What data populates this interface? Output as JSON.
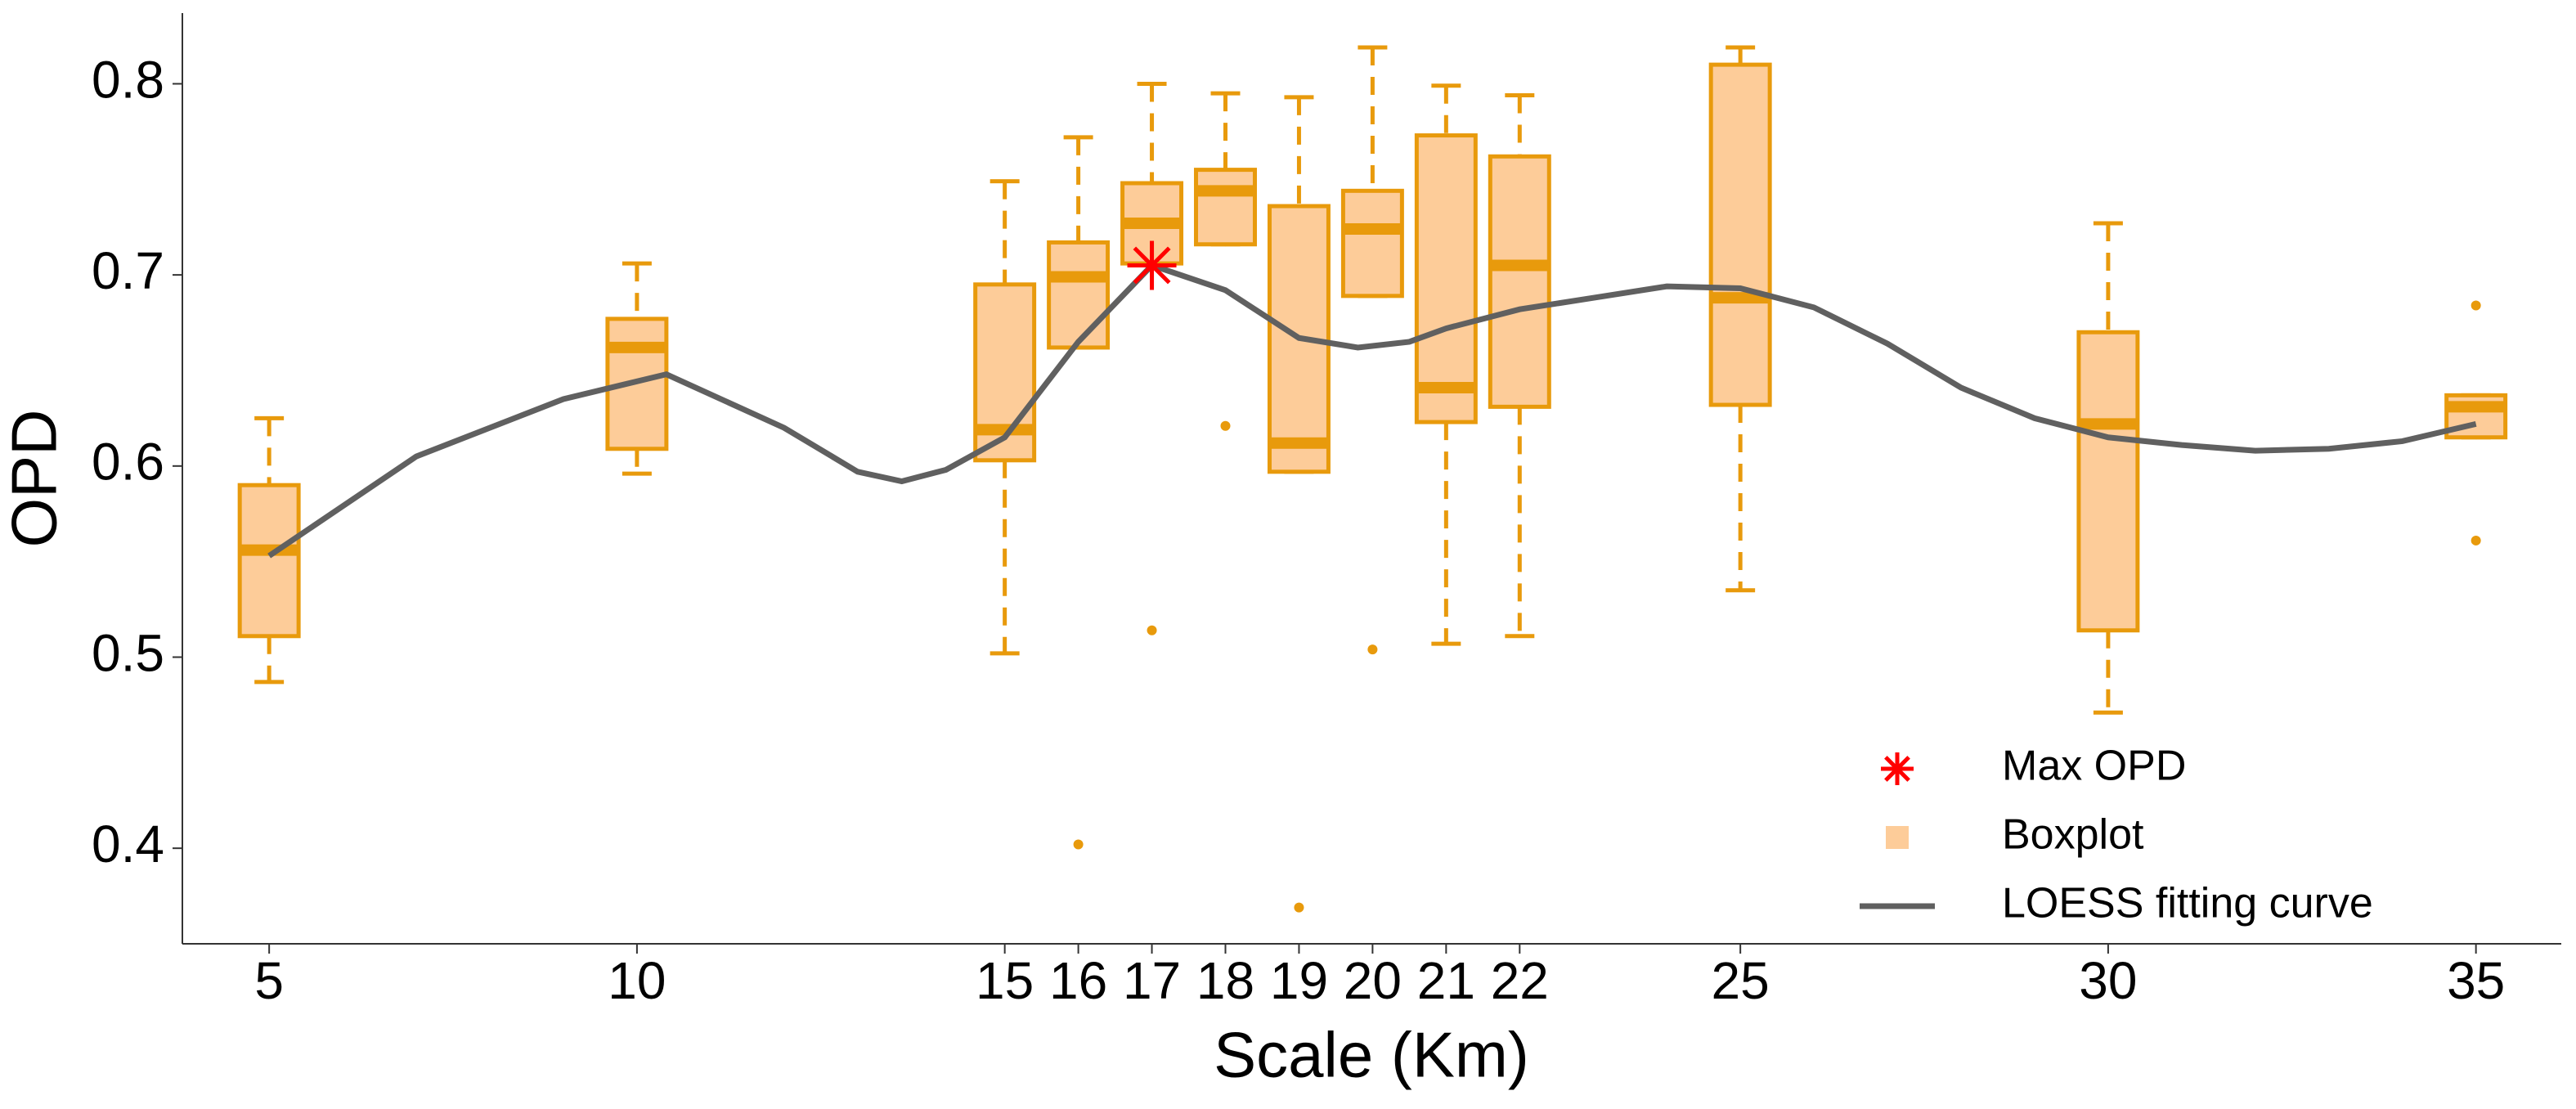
{
  "chart_data": {
    "type": "box",
    "x_label": "Scale (Km)",
    "y_label": "OPD",
    "xlim": [
      3.82,
      36.16
    ],
    "ylim": [
      0.35,
      0.837
    ],
    "xticks": [
      5,
      10,
      15,
      16,
      17,
      18,
      19,
      20,
      21,
      22,
      25,
      30,
      35
    ],
    "yticks": [
      0.4,
      0.5,
      0.6,
      0.7,
      0.8
    ],
    "box_fill": "#fdcc99",
    "box_color": "#e89a0c",
    "curve_color": "#606060",
    "star_color": "#ff0000",
    "legend": "bottom-right",
    "boxes": [
      {
        "x": 5,
        "whisker_low": 0.487,
        "q1": 0.511,
        "median": 0.556,
        "q3": 0.59,
        "whisker_high": 0.625,
        "outliers": []
      },
      {
        "x": 10,
        "whisker_low": 0.596,
        "q1": 0.609,
        "median": 0.662,
        "q3": 0.677,
        "whisker_high": 0.706,
        "outliers": []
      },
      {
        "x": 15,
        "whisker_low": 0.502,
        "q1": 0.603,
        "median": 0.619,
        "q3": 0.695,
        "whisker_high": 0.749,
        "outliers": []
      },
      {
        "x": 16,
        "whisker_low": 0.662,
        "q1": 0.662,
        "median": 0.699,
        "q3": 0.717,
        "whisker_high": 0.772,
        "outliers": [
          0.402
        ]
      },
      {
        "x": 17,
        "whisker_low": 0.706,
        "q1": 0.706,
        "median": 0.727,
        "q3": 0.748,
        "whisker_high": 0.8,
        "outliers": [
          0.514
        ]
      },
      {
        "x": 18,
        "whisker_low": 0.716,
        "q1": 0.716,
        "median": 0.744,
        "q3": 0.755,
        "whisker_high": 0.795,
        "outliers": [
          0.621
        ]
      },
      {
        "x": 19,
        "whisker_low": 0.597,
        "q1": 0.597,
        "median": 0.612,
        "q3": 0.736,
        "whisker_high": 0.793,
        "outliers": [
          0.369
        ]
      },
      {
        "x": 20,
        "whisker_low": 0.689,
        "q1": 0.689,
        "median": 0.724,
        "q3": 0.744,
        "whisker_high": 0.819,
        "outliers": [
          0.504
        ]
      },
      {
        "x": 21,
        "whisker_low": 0.507,
        "q1": 0.623,
        "median": 0.641,
        "q3": 0.773,
        "whisker_high": 0.799,
        "outliers": []
      },
      {
        "x": 22,
        "whisker_low": 0.511,
        "q1": 0.631,
        "median": 0.705,
        "q3": 0.762,
        "whisker_high": 0.794,
        "outliers": []
      },
      {
        "x": 25,
        "whisker_low": 0.535,
        "q1": 0.632,
        "median": 0.688,
        "q3": 0.81,
        "whisker_high": 0.819,
        "outliers": []
      },
      {
        "x": 30,
        "whisker_low": 0.471,
        "q1": 0.514,
        "median": 0.622,
        "q3": 0.67,
        "whisker_high": 0.727,
        "outliers": []
      },
      {
        "x": 35,
        "whisker_low": 0.615,
        "q1": 0.615,
        "median": 0.631,
        "q3": 0.637,
        "whisker_high": 0.637,
        "outliers": [
          0.684,
          0.561
        ]
      }
    ],
    "curve": {
      "name": "LOESS fitting curve",
      "x": [
        5,
        7,
        9,
        10.4,
        12,
        13,
        13.6,
        14.2,
        15,
        16,
        17,
        18,
        19,
        19.8,
        20.5,
        21,
        22,
        23,
        24,
        25,
        26,
        27,
        28,
        29,
        30,
        31,
        32,
        33,
        34,
        35
      ],
      "values": [
        0.553,
        0.605,
        0.635,
        0.648,
        0.62,
        0.597,
        0.592,
        0.598,
        0.615,
        0.665,
        0.705,
        0.692,
        0.667,
        0.662,
        0.665,
        0.672,
        0.682,
        0.688,
        0.694,
        0.693,
        0.683,
        0.664,
        0.641,
        0.625,
        0.615,
        0.611,
        0.608,
        0.609,
        0.613,
        0.622
      ]
    },
    "max_point": {
      "name": "Max OPD",
      "x": 17,
      "value": 0.705
    },
    "box_name": "Boxplot"
  }
}
